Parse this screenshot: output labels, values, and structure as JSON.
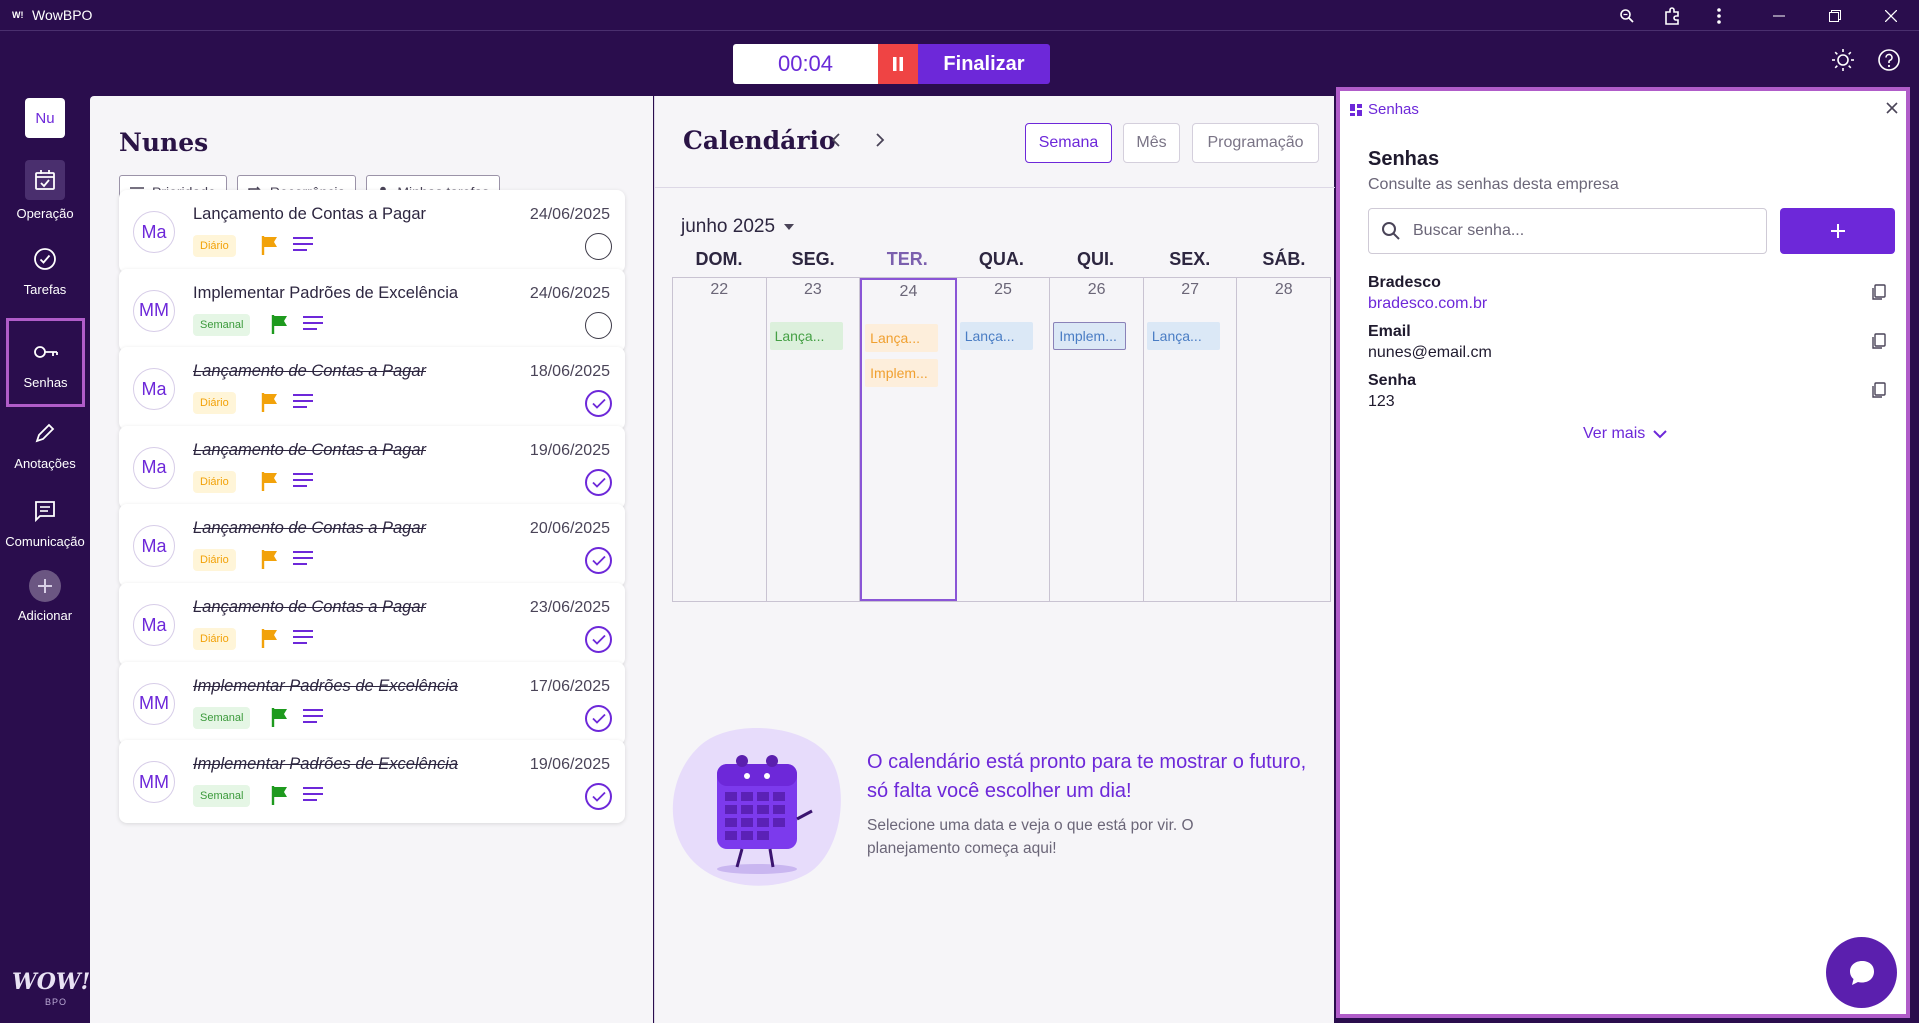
{
  "window": {
    "logo_text": "W!",
    "title": "WowBPO"
  },
  "timer": {
    "time": "00:04",
    "finish_label": "Finalizar"
  },
  "sidebar": {
    "company_initials": "Nu",
    "items": [
      {
        "label": "Operação",
        "icon": "calendar-check-icon"
      },
      {
        "label": "Tarefas",
        "icon": "check-circle-icon"
      },
      {
        "label": "Senhas",
        "icon": "key-icon",
        "active": true
      },
      {
        "label": "Anotações",
        "icon": "pencil-icon"
      },
      {
        "label": "Comunicação",
        "icon": "message-icon"
      },
      {
        "label": "Adicionar",
        "icon": "plus-icon"
      }
    ],
    "brand": "WOW!",
    "brand_sub": "BPO"
  },
  "tasks": {
    "title": "Nunes",
    "filters": [
      "Prioridade",
      "Recorrência",
      "Minhas tarefas"
    ],
    "items": [
      {
        "initials": "Ma",
        "name": "Lançamento de Contas a Pagar",
        "date": "24/06/2025",
        "badge": "Diário",
        "done": false
      },
      {
        "initials": "MM",
        "name": "Implementar Padrões de Excelência",
        "date": "24/06/2025",
        "badge": "Semanal",
        "done": false
      },
      {
        "initials": "Ma",
        "name": "Lançamento de Contas a Pagar",
        "date": "18/06/2025",
        "badge": "Diário",
        "done": true
      },
      {
        "initials": "Ma",
        "name": "Lançamento de Contas a Pagar",
        "date": "19/06/2025",
        "badge": "Diário",
        "done": true
      },
      {
        "initials": "Ma",
        "name": "Lançamento de Contas a Pagar",
        "date": "20/06/2025",
        "badge": "Diário",
        "done": true
      },
      {
        "initials": "Ma",
        "name": "Lançamento de Contas a Pagar",
        "date": "23/06/2025",
        "badge": "Diário",
        "done": true
      },
      {
        "initials": "MM",
        "name": "Implementar Padrões de Excelência",
        "date": "17/06/2025",
        "badge": "Semanal",
        "done": true
      },
      {
        "initials": "MM",
        "name": "Implementar Padrões de Excelência",
        "date": "19/06/2025",
        "badge": "Semanal",
        "done": true
      }
    ]
  },
  "calendar": {
    "title": "Calendário",
    "views": [
      "Semana",
      "Mês",
      "Programação"
    ],
    "selected_view": "Semana",
    "month": "junho 2025",
    "weekdays": [
      "DOM.",
      "SEG.",
      "TER.",
      "QUA.",
      "QUI.",
      "SEX.",
      "SÁB."
    ],
    "days": [
      "22",
      "23",
      "24",
      "25",
      "26",
      "27",
      "28"
    ],
    "today_index": 2,
    "events": [
      {
        "day": 1,
        "label": "Lança...",
        "color": "green"
      },
      {
        "day": 2,
        "label": "Lança...",
        "color": "orange"
      },
      {
        "day": 2,
        "label": "Implem...",
        "color": "orange"
      },
      {
        "day": 3,
        "label": "Lança...",
        "color": "blue"
      },
      {
        "day": 4,
        "label": "Implem...",
        "color": "bluesel"
      },
      {
        "day": 5,
        "label": "Lança...",
        "color": "blue"
      }
    ],
    "empty_title": "O calendário está pronto para te mostrar o futuro, só falta você escolher um dia!",
    "empty_subtitle": "Selecione uma data e veja o que está por vir. O planejamento começa aqui!"
  },
  "senhas": {
    "tab_label": "Senhas",
    "title": "Senhas",
    "subtitle": "Consulte as senhas desta empresa",
    "search_placeholder": "Buscar senha...",
    "fields": [
      {
        "label": "Bradesco",
        "value": "bradesco.com.br",
        "link": true
      },
      {
        "label": "Email",
        "value": "nunes@email.cm",
        "link": false
      },
      {
        "label": "Senha",
        "value": "123",
        "link": false
      }
    ],
    "more_label": "Ver mais"
  },
  "colors": {
    "accent": "#6d28d9",
    "sidebar_bg": "#2a0d4d",
    "highlight": "#b05cc9"
  }
}
